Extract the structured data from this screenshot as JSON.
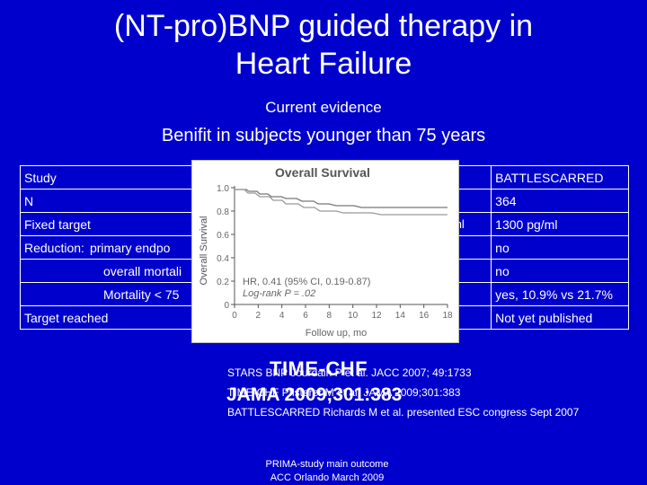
{
  "title_line1": "(NT-pro)BNP guided therapy in",
  "title_line2": "Heart Failure",
  "subtitle": "Current evidence",
  "headline": "Benifit in subjects younger than 75 years",
  "table": {
    "rows": [
      {
        "label": "Study",
        "sub": "",
        "col2": "",
        "col3": "BATTLESCARRED"
      },
      {
        "label": "N",
        "sub": "",
        "col2": "",
        "col3": "364"
      },
      {
        "label": "Fixed target",
        "sub": "",
        "col2": "g/ml",
        "col3": "1300 pg/ml"
      },
      {
        "label": "Reduction:",
        "sub": "primary endpo",
        "col2": "",
        "col3": "no"
      },
      {
        "label": "",
        "sub": "overall mortali",
        "col2": "",
        "col3": "no"
      },
      {
        "label": "",
        "sub": "Mortality < 75",
        "col2": "",
        "col3": "yes, 10.9% vs 21.7%"
      },
      {
        "label": "Target reached",
        "sub": "",
        "col2": "",
        "col3": "Not yet published"
      }
    ]
  },
  "plot": {
    "title": "Overall Survival",
    "ylabel": "Overall Survival",
    "xlabel": "Follow up, mo",
    "yticks": [
      "1.0",
      "0.8",
      "0.6",
      "0.4",
      "0.2",
      "0"
    ],
    "xticks": [
      "0",
      "2",
      "4",
      "6",
      "8",
      "10",
      "12",
      "14",
      "16",
      "18"
    ],
    "hr_text": "HR, 0.41 (95% CI, 0.19-0.87)",
    "logrank_text": "Log-rank P = .02"
  },
  "refs": {
    "line1": "STARS BNP Jourdain P et al. JACC 2007; 49:1733",
    "line2": "TIME-CHF Pfisterer M et al. JAMA 2009;301:383",
    "line3": "BATTLESCARRED Richards M et al. presented ESC congress Sept 2007"
  },
  "overlay": {
    "line1": "TIME-CHF",
    "line2": "JAMA 2009;301:383"
  },
  "footer": {
    "line1": "PRIMA-study main outcome",
    "line2": "ACC Orlando March 2009"
  },
  "colors": {
    "background": "#0000cc",
    "text": "#ffffff"
  }
}
